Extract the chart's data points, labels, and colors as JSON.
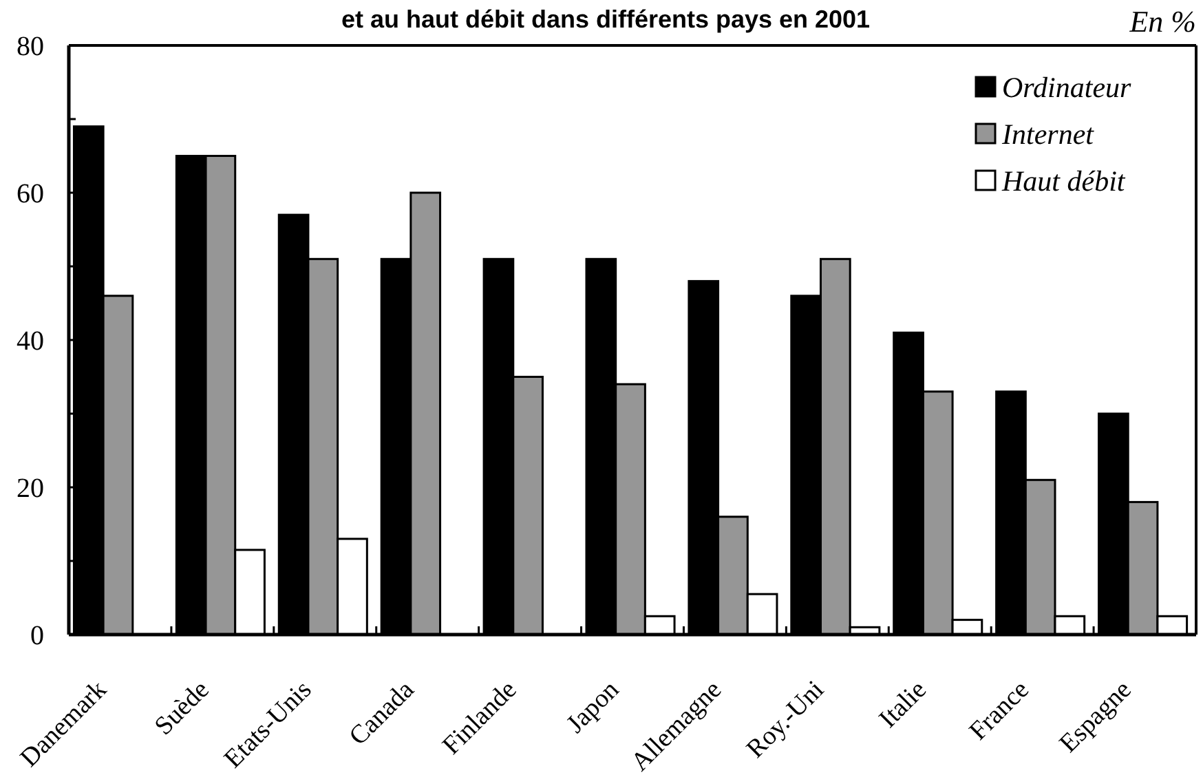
{
  "chart_data": {
    "type": "bar",
    "title": "et au haut débit dans différents pays en 2001",
    "ylabel": "En %",
    "categories": [
      "Danemark",
      "Suède",
      "Etats-Unis",
      "Canada",
      "Finlande",
      "Japon",
      "Allemagne",
      "Roy.-Uni",
      "Italie",
      "France",
      "Espagne"
    ],
    "series": [
      {
        "name": "Ordinateur",
        "color": "#000000",
        "values": [
          69,
          65,
          57,
          51,
          51,
          51,
          48,
          46,
          41,
          33,
          30
        ]
      },
      {
        "name": "Internet",
        "color": "#969696",
        "values": [
          46,
          65,
          51,
          60,
          35,
          34,
          16,
          51,
          33,
          21,
          18
        ]
      },
      {
        "name": "Haut débit",
        "color": "#ffffff",
        "values": [
          null,
          11.5,
          13,
          null,
          null,
          2.5,
          5.5,
          1,
          2,
          2.5,
          2.5
        ]
      }
    ],
    "ylim": [
      0,
      80
    ],
    "yticks": [
      0,
      {
        "value": 10,
        "label": null
      },
      20,
      {
        "value": 30,
        "label": null
      },
      40,
      {
        "value": 50,
        "label": null
      },
      60,
      {
        "value": 70,
        "label": null
      },
      80
    ],
    "legend": "top right"
  }
}
